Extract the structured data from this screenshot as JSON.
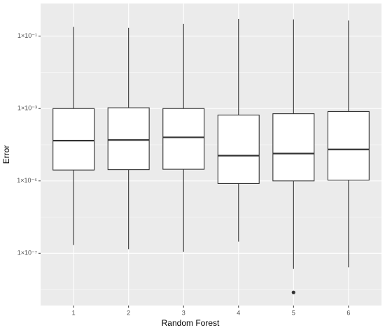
{
  "chart_data": {
    "type": "boxplot",
    "x_label": "Random Forest",
    "y_label": "Error",
    "log_y": true,
    "grid": true,
    "panel_color": "#ebebeb",
    "box_fill": "#ffffff",
    "line_color": "#333333",
    "categories": [
      "1",
      "2",
      "3",
      "4",
      "5",
      "6"
    ],
    "boxes": [
      {
        "whisker_low": 1.7e-07,
        "q1": 2e-05,
        "median": 0.00013,
        "q3": 0.001,
        "whisker_high": 0.18,
        "outliers": []
      },
      {
        "whisker_low": 1.3e-07,
        "q1": 2.05e-05,
        "median": 0.000135,
        "q3": 0.00105,
        "whisker_high": 0.17,
        "outliers": []
      },
      {
        "whisker_low": 1.1e-07,
        "q1": 2.1e-05,
        "median": 0.00016,
        "q3": 0.001,
        "whisker_high": 0.22,
        "outliers": []
      },
      {
        "whisker_low": 2.1e-07,
        "q1": 8.5e-06,
        "median": 5e-05,
        "q3": 0.00066,
        "whisker_high": 0.3,
        "outliers": []
      },
      {
        "whisker_low": 3.7e-08,
        "q1": 1e-05,
        "median": 5.7e-05,
        "q3": 0.00072,
        "whisker_high": 0.29,
        "outliers": [
          8.3e-09
        ]
      },
      {
        "whisker_low": 4.1e-08,
        "q1": 1.05e-05,
        "median": 7.4e-05,
        "q3": 0.00083,
        "whisker_high": 0.27,
        "outliers": []
      }
    ],
    "ylim": [
      3.6e-09,
      0.8
    ],
    "yticks": [
      {
        "value": 0.1,
        "label": "1×10⁻¹"
      },
      {
        "value": 0.001,
        "label": "1×10⁻³"
      },
      {
        "value": 1e-05,
        "label": "1×10⁻⁵"
      },
      {
        "value": 1e-07,
        "label": "1×10⁻⁷"
      }
    ],
    "minor_yticks": [
      0.01,
      0.0001,
      1e-06,
      1e-08
    ]
  }
}
